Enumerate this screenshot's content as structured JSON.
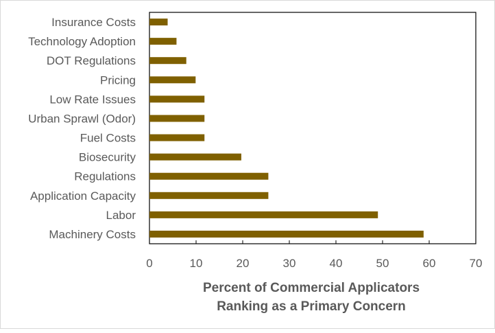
{
  "chart_data": {
    "type": "bar",
    "orientation": "horizontal",
    "categories": [
      "Insurance Costs",
      "Technology Adoption",
      "DOT Regulations",
      "Pricing",
      "Low Rate  Issues",
      "Urban Sprawl (Odor)",
      "Fuel Costs",
      "Biosecurity",
      "Regulations",
      "Application Capacity",
      "Labor",
      "Machinery Costs"
    ],
    "values": [
      3.9,
      5.8,
      7.9,
      9.9,
      11.8,
      11.8,
      11.8,
      19.7,
      25.5,
      25.5,
      49.0,
      58.8
    ],
    "title": "",
    "xlabel_lines": [
      "Percent of Commercial Applicators",
      "Ranking as a Primary Concern"
    ],
    "ylabel": "",
    "xlim": [
      0,
      70
    ],
    "xticks": [
      0,
      10,
      20,
      30,
      40,
      50,
      60,
      70
    ],
    "grid": false,
    "legend": "none",
    "bar_color": "#7f6000"
  }
}
